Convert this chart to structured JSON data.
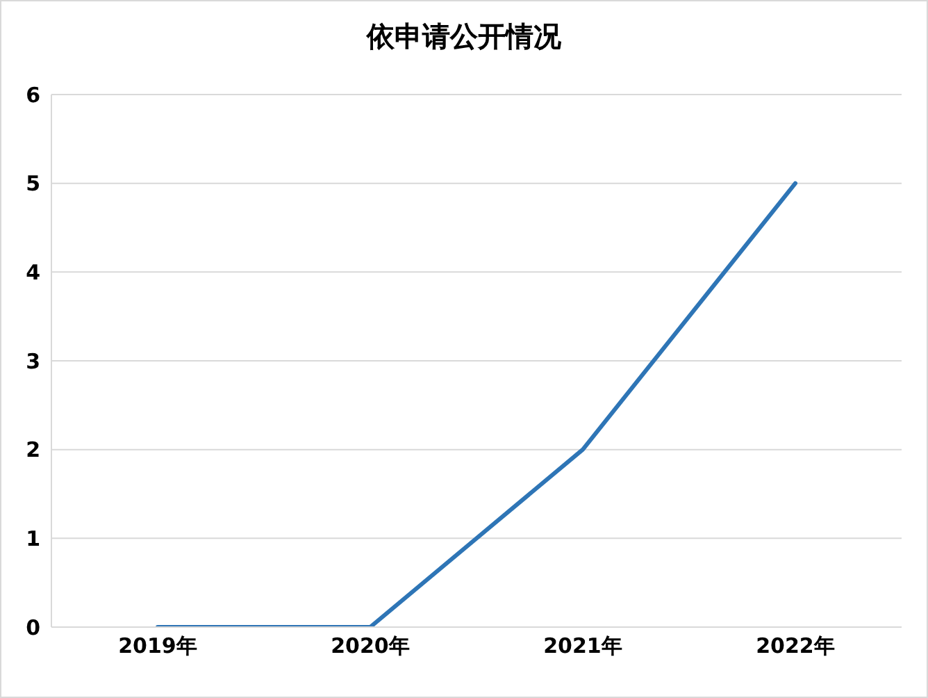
{
  "chart_data": {
    "type": "line",
    "title": "依申请公开情况",
    "categories": [
      "2019年",
      "2020年",
      "2021年",
      "2022年"
    ],
    "series": [
      {
        "color": "#2e75b6",
        "values": [
          0,
          0,
          2,
          5
        ]
      }
    ],
    "ylim": [
      0,
      6
    ],
    "yticks": [
      0,
      1,
      2,
      3,
      4,
      5,
      6
    ],
    "grid": "y",
    "legend": false,
    "marker": "none",
    "line_style": "solid"
  }
}
